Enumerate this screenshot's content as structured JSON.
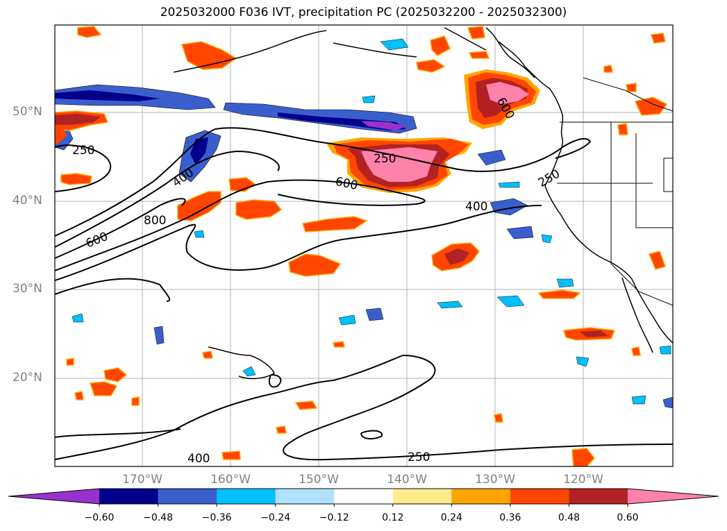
{
  "title": "2025032000 F036 IVT, precipitation PC (2025032200 - 2025032300)",
  "lat_labels": [
    "50°N",
    "40°N",
    "30°N",
    "20°N"
  ],
  "lon_labels": [
    "170°W",
    "160°W",
    "150°W",
    "140°W",
    "130°W",
    "120°W"
  ],
  "contour_labels": [
    "250",
    "400",
    "600",
    "800",
    "600",
    "250",
    "600",
    "400",
    "250",
    "400",
    "250"
  ],
  "colorbar": {
    "ticks": [
      "−0.60",
      "−0.48",
      "−0.36",
      "−0.24",
      "−0.12",
      "0.12",
      "0.24",
      "0.36",
      "0.48",
      "0.60"
    ],
    "colors": [
      "#9932cc",
      "#00008b",
      "#3a5fcd",
      "#00bfff",
      "#b0e2ff",
      "#ffffff",
      "#ffec8b",
      "#ffa500",
      "#ff4500",
      "#b22222",
      "#ff82ab"
    ]
  }
}
